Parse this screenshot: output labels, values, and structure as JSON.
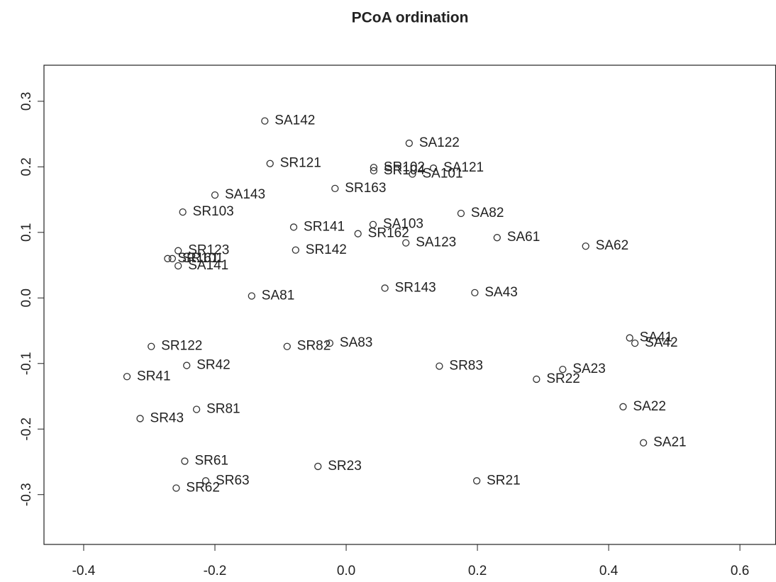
{
  "chart_data": {
    "type": "scatter",
    "title": "PCoA ordination",
    "labels": [
      "SA142",
      "SA122",
      "SR121",
      "SR102",
      "SR104",
      "SA121",
      "SA101",
      "SR163",
      "SA143",
      "SR103",
      "SA82",
      "SR141",
      "SA103",
      "SR162",
      "SA61",
      "SA123",
      "SA62",
      "SR142",
      "SR123",
      "SR161",
      "SR101",
      "SA141",
      "SA81",
      "SR143",
      "SA43",
      "SA41",
      "SA42",
      "SR122",
      "SR82",
      "SA83",
      "SR42",
      "SR83",
      "SA23",
      "SR41",
      "SR22",
      "SR81",
      "SA22",
      "SR43",
      "SA21",
      "SR61",
      "SR23",
      "SR63",
      "SR21",
      "SR62"
    ],
    "x": [
      -0.124,
      0.096,
      -0.116,
      0.042,
      0.042,
      0.133,
      0.101,
      -0.017,
      -0.2,
      -0.249,
      0.175,
      -0.08,
      0.041,
      0.018,
      0.23,
      0.091,
      0.365,
      -0.077,
      -0.256,
      -0.272,
      -0.265,
      -0.256,
      -0.144,
      0.059,
      0.196,
      0.432,
      0.44,
      -0.297,
      -0.09,
      -0.025,
      -0.243,
      0.142,
      0.33,
      -0.334,
      0.29,
      -0.228,
      0.422,
      -0.314,
      0.453,
      -0.246,
      -0.043,
      -0.214,
      0.199,
      -0.259
    ],
    "y": [
      0.27,
      0.236,
      0.205,
      0.199,
      0.194,
      0.198,
      0.189,
      0.167,
      0.157,
      0.131,
      0.129,
      0.108,
      0.112,
      0.098,
      0.092,
      0.084,
      0.079,
      0.073,
      0.072,
      0.06,
      0.06,
      0.049,
      0.003,
      0.015,
      0.008,
      -0.061,
      -0.069,
      -0.074,
      -0.074,
      -0.069,
      -0.103,
      -0.104,
      -0.109,
      -0.12,
      -0.124,
      -0.17,
      -0.166,
      -0.184,
      -0.221,
      -0.249,
      -0.257,
      -0.279,
      -0.279,
      -0.29
    ],
    "color": "#333333",
    "xlim": [
      -0.4605,
      0.655
    ],
    "ylim": [
      -0.376,
      0.355
    ],
    "xticks": [
      -0.4,
      -0.2,
      {
        "value": 0,
        "label": "0.0"
      },
      0.2,
      0.4,
      0.6
    ],
    "yticks": [
      -0.3,
      -0.2,
      -0.1,
      {
        "value": 0,
        "label": "0.0"
      },
      0.1,
      0.2,
      0.3
    ]
  }
}
